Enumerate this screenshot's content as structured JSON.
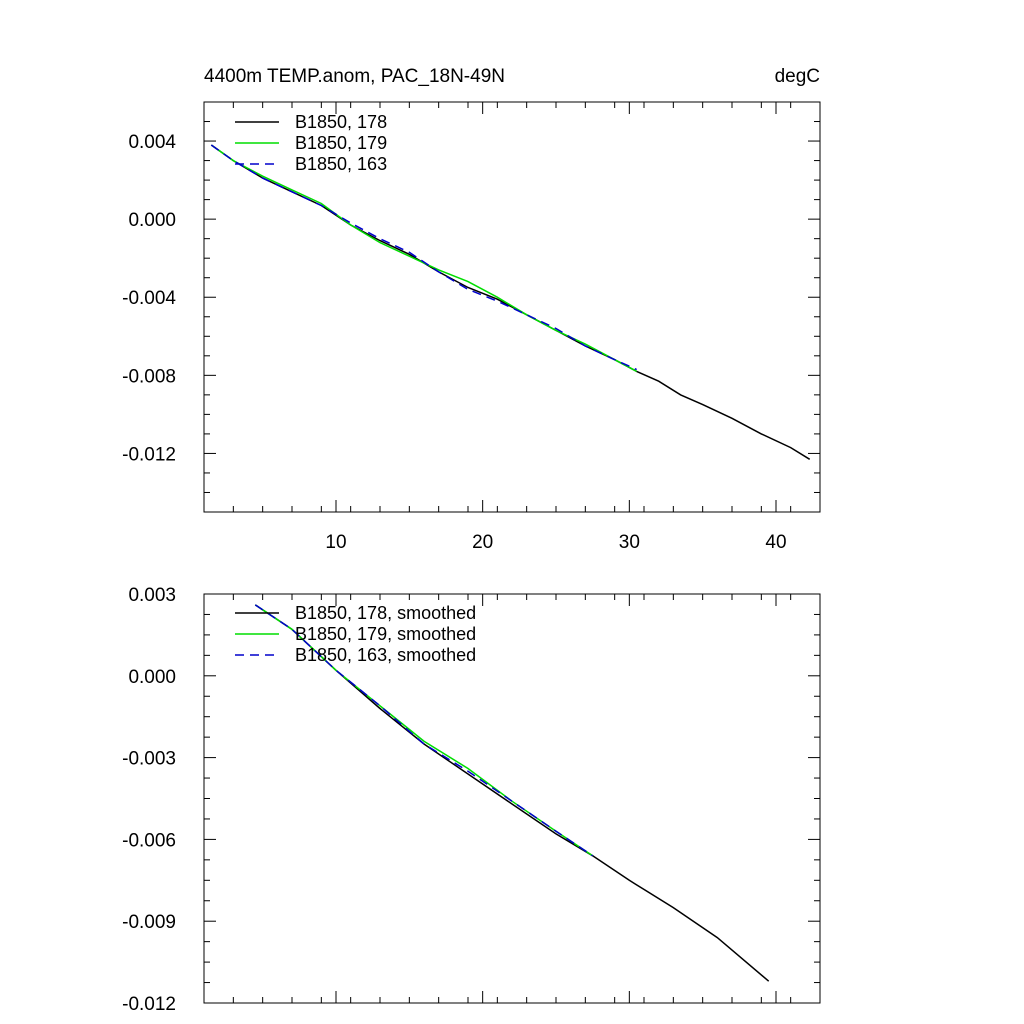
{
  "chart_data": [
    {
      "type": "line",
      "title": "4400m TEMP.anom, PAC_18N-49N",
      "units": "degC",
      "xlim": [
        1,
        43
      ],
      "ylim": [
        -0.015,
        0.006
      ],
      "xticks": [
        10,
        20,
        30,
        40
      ],
      "xtick_labels": [
        "10",
        "20",
        "30",
        "40"
      ],
      "yticks": [
        0.004,
        0.0,
        -0.004,
        -0.008,
        -0.012
      ],
      "ytick_labels": [
        "0.004",
        "0.000",
        "-0.004",
        "-0.008",
        "-0.012"
      ],
      "grid": false,
      "legend": "top-left",
      "series": [
        {
          "name": "B1850, 178",
          "color": "#000000",
          "dash": "solid",
          "x": [
            1.5,
            3,
            5,
            7,
            9,
            11,
            13,
            15,
            17,
            19,
            21,
            23,
            25,
            27,
            29,
            30.5,
            32,
            33.5,
            35,
            37,
            39,
            41,
            42.3
          ],
          "y": [
            0.0038,
            0.003,
            0.0021,
            0.0014,
            0.0007,
            -0.0003,
            -0.0011,
            -0.0018,
            -0.0027,
            -0.0035,
            -0.0041,
            -0.0049,
            -0.0057,
            -0.0065,
            -0.0072,
            -0.0078,
            -0.0083,
            -0.009,
            -0.0095,
            -0.0102,
            -0.011,
            -0.0117,
            -0.0123
          ]
        },
        {
          "name": "B1850, 179",
          "color": "#00dd00",
          "dash": "solid",
          "x": [
            1.5,
            3,
            5,
            7,
            9,
            11,
            13,
            15,
            17,
            19,
            21,
            23,
            25,
            27,
            29,
            30.5
          ],
          "y": [
            0.0038,
            0.003,
            0.0022,
            0.0015,
            0.0008,
            -0.0003,
            -0.0012,
            -0.0019,
            -0.0026,
            -0.0032,
            -0.004,
            -0.0049,
            -0.0057,
            -0.0064,
            -0.0072,
            -0.0078
          ]
        },
        {
          "name": "B1850, 163",
          "color": "#0000cc",
          "dash": "dashed",
          "x": [
            1.5,
            3,
            5,
            7,
            9,
            11,
            13,
            15,
            17,
            19,
            21,
            23,
            25,
            27,
            29,
            30.5
          ],
          "y": [
            0.0038,
            0.003,
            0.0021,
            0.0014,
            0.0007,
            -0.0002,
            -0.001,
            -0.0017,
            -0.0027,
            -0.0036,
            -0.0042,
            -0.0049,
            -0.0056,
            -0.0065,
            -0.0072,
            -0.0077
          ]
        }
      ]
    },
    {
      "type": "line",
      "xlim": [
        1,
        43
      ],
      "ylim": [
        -0.012,
        0.003
      ],
      "xticks": [
        10,
        20,
        30,
        40
      ],
      "xtick_labels": [],
      "yticks": [
        0.003,
        0.0,
        -0.003,
        -0.006,
        -0.009,
        -0.012
      ],
      "ytick_labels": [
        "0.003",
        "0.000",
        "-0.003",
        "-0.006",
        "-0.009",
        "-0.012"
      ],
      "grid": false,
      "legend": "top-left",
      "series": [
        {
          "name": "B1850, 178, smoothed",
          "color": "#000000",
          "dash": "solid",
          "x": [
            4.5,
            7,
            10,
            13,
            16,
            19,
            22,
            25,
            27.5,
            30,
            33,
            36,
            39.5
          ],
          "y": [
            0.0026,
            0.0017,
            0.0002,
            -0.0012,
            -0.0025,
            -0.0036,
            -0.0047,
            -0.0058,
            -0.0066,
            -0.0075,
            -0.0085,
            -0.0096,
            -0.0112
          ]
        },
        {
          "name": "B1850, 179, smoothed",
          "color": "#00dd00",
          "dash": "solid",
          "x": [
            4.5,
            7,
            10,
            13,
            16,
            19,
            22,
            25,
            27.5
          ],
          "y": [
            0.0026,
            0.0017,
            0.0002,
            -0.0011,
            -0.0024,
            -0.0034,
            -0.0046,
            -0.0057,
            -0.0066
          ]
        },
        {
          "name": "B1850, 163, smoothed",
          "color": "#0000cc",
          "dash": "dashed",
          "x": [
            4.5,
            7,
            10,
            13,
            16,
            19,
            22,
            25,
            27.5
          ],
          "y": [
            0.0026,
            0.0017,
            0.0002,
            -0.0011,
            -0.0025,
            -0.0035,
            -0.0046,
            -0.0057,
            -0.0066
          ]
        }
      ]
    }
  ]
}
